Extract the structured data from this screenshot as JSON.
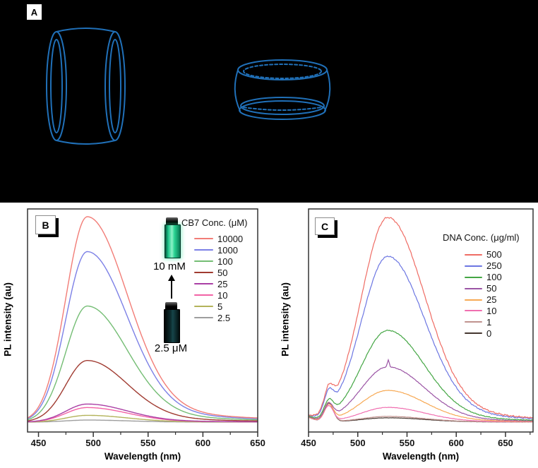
{
  "figure": {
    "panel_a": {
      "label": "A",
      "background": "#000000",
      "drawing_color": "#2070b8"
    }
  },
  "chart_data": [
    {
      "id": "B",
      "type": "line",
      "panel_label": "B",
      "xlabel": "Wavelength (nm)",
      "ylabel": "PL intensity (au)",
      "xlim": [
        440,
        650
      ],
      "xticks": [
        450,
        500,
        550,
        600,
        650
      ],
      "grid": false,
      "legend_position": "upper right",
      "legend_title": "CB7 Conc. (μM)",
      "peak_nm": 495,
      "series": [
        {
          "label": "10000",
          "color": "#f27d77",
          "peak_rel": 1.0
        },
        {
          "label": "1000",
          "color": "#7c80e6",
          "peak_rel": 0.83
        },
        {
          "label": "100",
          "color": "#74bd74",
          "peak_rel": 0.565
        },
        {
          "label": "50",
          "color": "#a03b31",
          "peak_rel": 0.3
        },
        {
          "label": "25",
          "color": "#aa3fa5",
          "peak_rel": 0.088
        },
        {
          "label": "10",
          "color": "#f263a5",
          "peak_rel": 0.071
        },
        {
          "label": "5",
          "color": "#b3b35a",
          "peak_rel": 0.033
        },
        {
          "label": "2.5",
          "color": "#9e9e9e",
          "peak_rel": 0.01
        }
      ],
      "inset": {
        "top_vial_label": "10 mM",
        "top_vial_color": "#2ad493",
        "bottom_vial_label": "2.5 μM",
        "bottom_vial_color": "#0d2d30",
        "arrow_direction": "up"
      }
    },
    {
      "id": "C",
      "type": "line",
      "panel_label": "C",
      "xlabel": "Wavelength (nm)",
      "ylabel": "PL intensity (au)",
      "xlim": [
        450,
        678
      ],
      "xticks": [
        450,
        500,
        550,
        600,
        650
      ],
      "grid": false,
      "legend_position": "upper right",
      "legend_title": "DNA Conc. (μg/ml)",
      "peak_nm": 530,
      "shoulder_peak_nm": 470,
      "series": [
        {
          "label": "500",
          "color": "#ef6c64",
          "peak_rel": 1.0,
          "peak470_rel": 0.1
        },
        {
          "label": "250",
          "color": "#6c76e2",
          "peak_rel": 0.81,
          "peak470_rel": 0.095
        },
        {
          "label": "100",
          "color": "#44a644",
          "peak_rel": 0.448,
          "peak470_rel": 0.075
        },
        {
          "label": "50",
          "color": "#9b55a5",
          "peak_rel": 0.27,
          "peak470_rel": 0.07,
          "spike_531": true
        },
        {
          "label": "25",
          "color": "#f7a954",
          "peak_rel": 0.155,
          "peak470_rel": 0.075
        },
        {
          "label": "10",
          "color": "#f06fb0",
          "peak_rel": 0.072,
          "peak470_rel": 0.075
        },
        {
          "label": "1",
          "color": "#c0928e",
          "peak_rel": 0.028,
          "peak470_rel": 0.095
        },
        {
          "label": "0",
          "color": "#45362f",
          "peak_rel": 0.021,
          "peak470_rel": 0.092
        }
      ]
    }
  ]
}
